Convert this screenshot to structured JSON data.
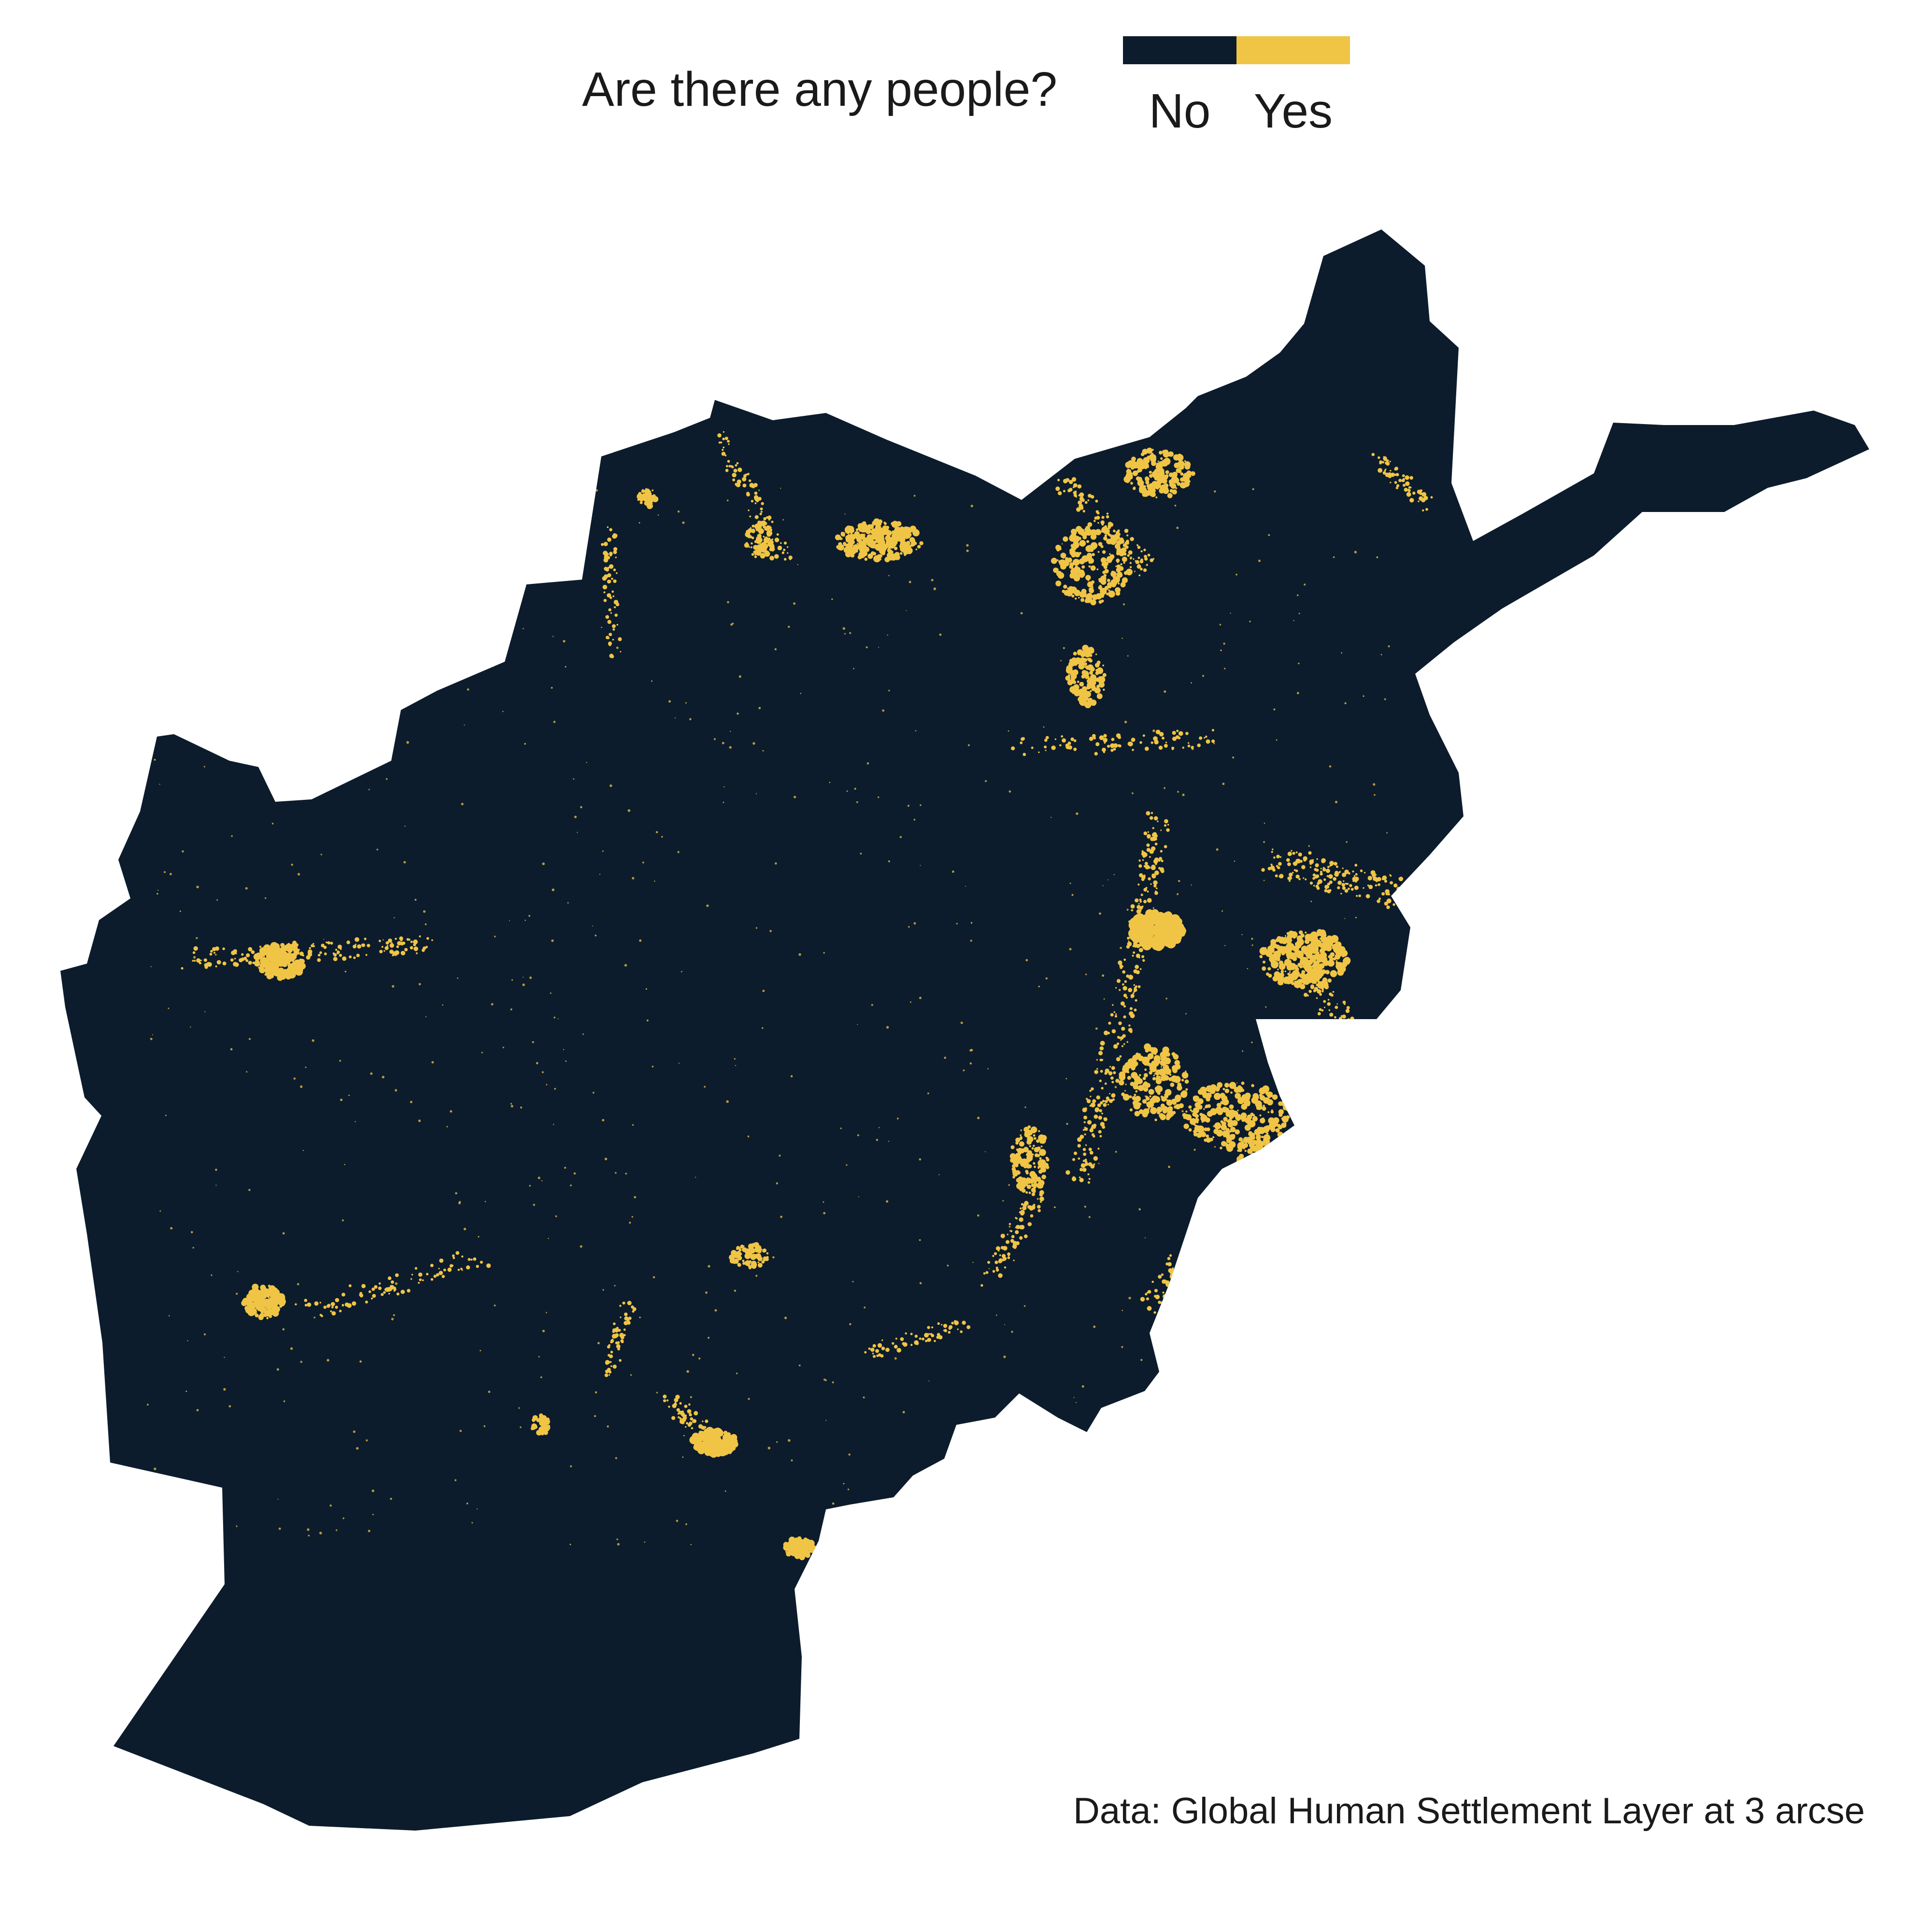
{
  "legend": {
    "title": "Are there any people?",
    "items": [
      {
        "label": "No",
        "color": "#0c1c2c"
      },
      {
        "label": "Yes",
        "color": "#f0c445"
      }
    ]
  },
  "caption": "Data: Global Human Settlement Layer at 3 arcse",
  "map": {
    "region_fill": "#0c1c2c",
    "settlement_color": "#f0c445"
  }
}
